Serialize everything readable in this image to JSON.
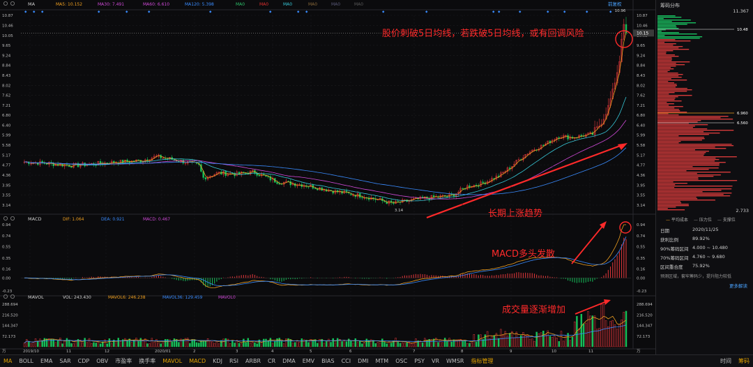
{
  "top_legend": {
    "indicator": "MA",
    "items": [
      {
        "label": "MA5: 10.152",
        "color": "#f0a020"
      },
      {
        "label": "MA30: 7.491",
        "color": "#d04ad8"
      },
      {
        "label": "MA60: 6.610",
        "color": "#d04ad8"
      },
      {
        "label": "MA120: 5.398",
        "color": "#3a8cff"
      },
      {
        "label": "MA0",
        "color": "#2ec06a"
      },
      {
        "label": "MA0",
        "color": "#e03030"
      },
      {
        "label": "MA0",
        "color": "#37c8d8"
      },
      {
        "label": "MA0",
        "color": "#8a6a3a"
      },
      {
        "label": "MA0",
        "color": "#5a5a7a"
      },
      {
        "label": "MA0",
        "color": "#5a5a5a"
      }
    ],
    "right_label": "前复权"
  },
  "price_axis": [
    "10.87",
    "10.46",
    "10.05",
    "9.65",
    "9.24",
    "8.84",
    "8.43",
    "8.02",
    "7.62",
    "7.21",
    "6.80",
    "6.40",
    "5.99",
    "5.58",
    "5.17",
    "4.77",
    "4.36",
    "3.95",
    "3.55",
    "3.14"
  ],
  "price_left_axis": [
    "10.87",
    "10.46",
    "10.05",
    "9.65",
    "9.24",
    "8.84",
    "8.43",
    "8.02",
    "7.62",
    "7.21",
    "6.80",
    "6.40",
    "5.99",
    "5.58",
    "5.17",
    "4.77",
    "4.36",
    "3.95",
    "3.55",
    "3.14"
  ],
  "cursor_price": "10.15",
  "high_label": "10.96",
  "low_label": "3.14",
  "annotations": {
    "top": "股价刺破5日均线，若跌破5日均线，或有回调风险",
    "trend": "长期上涨趋势",
    "macd": "MACD多头发散",
    "volume": "成交量逐渐增加"
  },
  "macd_legend": {
    "indicator": "MACD",
    "items": [
      {
        "label": "DIF: 1.064",
        "color": "#f0a020"
      },
      {
        "label": "DEA: 0.921",
        "color": "#3a8cff"
      },
      {
        "label": "MACD: 0.467",
        "color": "#d04ad8"
      }
    ]
  },
  "macd_axis": [
    "0.94",
    "0.74",
    "0.55",
    "0.35",
    "0.16",
    "0.00",
    "-0.23"
  ],
  "vol_legend": {
    "indicator": "MAVOL",
    "items": [
      {
        "label": "VOL: 243.430",
        "color": "#cfcfcf"
      },
      {
        "label": "MAVOL6: 246.238",
        "color": "#f0a020"
      },
      {
        "label": "MAVOL36: 129.459",
        "color": "#3a8cff"
      },
      {
        "label": "MAVOL0",
        "color": "#d04ad8"
      }
    ]
  },
  "vol_axis": [
    "288.694",
    "216.520",
    "144.347",
    "72.173",
    "万"
  ],
  "x_axis": [
    "2019/10",
    "11",
    "12",
    "2020/01",
    "2",
    "3",
    "4",
    "5",
    "6",
    "7",
    "8",
    "9",
    "10",
    "11"
  ],
  "side": {
    "title": "筹码分布",
    "top_value": "11.367",
    "bottom_value": "2.733",
    "price_marks": [
      {
        "label": "10.48",
        "color": "#ffffff"
      },
      {
        "label": "6.960",
        "color": "#ffffff"
      },
      {
        "label": "6.560",
        "color": "#ffffff"
      }
    ],
    "legend": [
      "平均成本",
      "压力位",
      "支撑位"
    ],
    "date": "2020/11/25",
    "rows": [
      {
        "k": "获利比例",
        "v": "89.92%"
      },
      {
        "k": "90%筹码区间",
        "v": "4.000 ~ 10.480"
      },
      {
        "k": "70%筹码区间",
        "v": "4.760 ~ 9.680"
      },
      {
        "k": "区间重合度",
        "v": "75.92%"
      }
    ],
    "note": "预测区域，套牢筹码少，提升阻力较低",
    "more": "更多解读"
  },
  "bottom_tabs": [
    "MA",
    "BOLL",
    "EMA",
    "SAR",
    "CDP",
    "OBV",
    "市盈率",
    "换手率",
    "MAVOL",
    "MACD",
    "KDJ",
    "RSI",
    "ARBR",
    "CR",
    "DMA",
    "EMV",
    "BIAS",
    "CCI",
    "DMI",
    "MTM",
    "OSC",
    "PSY",
    "VR",
    "WMSR",
    "指标管理"
  ],
  "bottom_right": [
    "时间",
    "筹码"
  ],
  "colors": {
    "up": "#e8383d",
    "down": "#16c05a",
    "annotation": "#ff2a2a"
  }
}
